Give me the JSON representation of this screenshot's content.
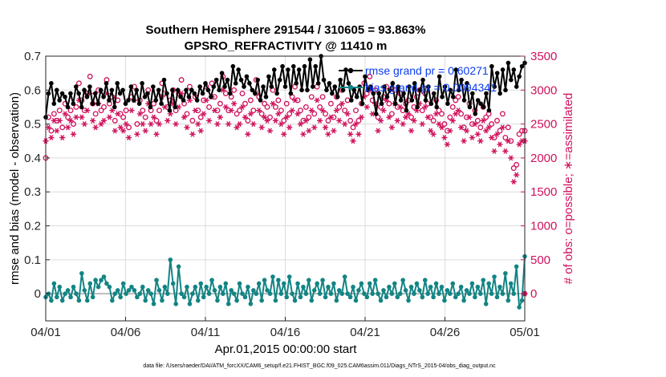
{
  "chart_data": {
    "type": "line",
    "title_line1": "Southern Hemisphere 291544 / 310605 = 93.863%",
    "title_line2": "GPSRO_REFRACTIVITY @ 11410 m",
    "xlabel": "Apr.01,2015 00:00:00 start",
    "ylabel_left": "rmse and bias (model - observation)",
    "ylabel_right": "# of obs: o=possible; ∗=assimilated",
    "footer": "data file: /Users/raeder/DAI/ATM_forcXX/CAM6_setup/f.e21.FHIST_BGC.f09_025.CAM6assim.011/Diags_NTrS_2015-04/obs_diag_output.nc",
    "x_ticks": [
      "04/01",
      "04/06",
      "04/11",
      "04/16",
      "04/21",
      "04/26",
      "05/01"
    ],
    "xlim": [
      0,
      30
    ],
    "ylim_left": [
      -0.08,
      0.7
    ],
    "yticks_left": [
      "0",
      "0.1",
      "0.2",
      "0.3",
      "0.4",
      "0.5",
      "0.6",
      "0.7"
    ],
    "ylim_right": [
      -400,
      3500
    ],
    "yticks_right": [
      "0",
      "500",
      "1000",
      "1500",
      "2000",
      "2500",
      "3000",
      "3500"
    ],
    "grid": true,
    "legend_position": "top-right",
    "colors": {
      "rmse": "#000000",
      "bias": "#138484",
      "obs": "#d0115c",
      "legend_text": "#0b3df0",
      "zero_line": "#bbbbbb"
    },
    "series": [
      {
        "name": "rmse grand pr = 0.60271",
        "axis": "left",
        "values": [
          0.52,
          0.59,
          0.62,
          0.56,
          0.6,
          0.57,
          0.59,
          0.58,
          0.55,
          0.59,
          0.56,
          0.61,
          0.59,
          0.55,
          0.6,
          0.58,
          0.61,
          0.56,
          0.59,
          0.56,
          0.6,
          0.58,
          0.62,
          0.57,
          0.6,
          0.55,
          0.62,
          0.59,
          0.6,
          0.56,
          0.57,
          0.61,
          0.57,
          0.6,
          0.56,
          0.62,
          0.58,
          0.59,
          0.55,
          0.61,
          0.57,
          0.6,
          0.56,
          0.63,
          0.59,
          0.54,
          0.6,
          0.55,
          0.6,
          0.58,
          0.57,
          0.6,
          0.58,
          0.6,
          0.59,
          0.57,
          0.61,
          0.59,
          0.62,
          0.6,
          0.58,
          0.61,
          0.63,
          0.6,
          0.65,
          0.61,
          0.63,
          0.59,
          0.67,
          0.62,
          0.66,
          0.63,
          0.61,
          0.64,
          0.62,
          0.6,
          0.59,
          0.63,
          0.57,
          0.61,
          0.58,
          0.64,
          0.61,
          0.66,
          0.59,
          0.63,
          0.67,
          0.61,
          0.66,
          0.59,
          0.67,
          0.62,
          0.66,
          0.6,
          0.67,
          0.6,
          0.69,
          0.61,
          0.67,
          0.62,
          0.7,
          0.63,
          0.6,
          0.62,
          0.59,
          0.61,
          0.58,
          0.63,
          0.6,
          0.66,
          0.62,
          0.57,
          0.6,
          0.58,
          0.61,
          0.56,
          0.64,
          0.6,
          0.61,
          0.59,
          0.53,
          0.59,
          0.56,
          0.61,
          0.58,
          0.6,
          0.62,
          0.56,
          0.61,
          0.57,
          0.59,
          0.54,
          0.61,
          0.57,
          0.62,
          0.55,
          0.6,
          0.63,
          0.57,
          0.61,
          0.56,
          0.59,
          0.55,
          0.64,
          0.58,
          0.61,
          0.56,
          0.6,
          0.58,
          0.66,
          0.6,
          0.63,
          0.57,
          0.62,
          0.55,
          0.59,
          0.53,
          0.57,
          0.56,
          0.55,
          0.59,
          0.54,
          0.67,
          0.61,
          0.65,
          0.59,
          0.66,
          0.6,
          0.68,
          0.63,
          0.66,
          0.61,
          0.64,
          0.67,
          0.68
        ]
      },
      {
        "name": "bias grand pr = 0.0094341",
        "axis": "left",
        "values": [
          -0.01,
          0.0,
          -0.02,
          0.03,
          -0.01,
          0.02,
          -0.02,
          0.0,
          0.01,
          -0.01,
          0.02,
          0.0,
          -0.02,
          0.06,
          0.01,
          -0.02,
          0.03,
          -0.01,
          0.04,
          0.02,
          0.04,
          0.05,
          0.03,
          0.02,
          -0.02,
          0.0,
          0.01,
          -0.01,
          0.03,
          0.0,
          0.01,
          0.02,
          0.01,
          -0.01,
          0.0,
          0.02,
          -0.02,
          0.01,
          0.0,
          -0.03,
          0.04,
          0.01,
          -0.02,
          0.02,
          0.0,
          0.1,
          0.03,
          -0.03,
          0.08,
          0.0,
          -0.01,
          0.02,
          -0.03,
          0.0,
          0.02,
          -0.02,
          0.03,
          -0.01,
          0.02,
          0.0,
          0.04,
          0.01,
          -0.02,
          0.02,
          0.0,
          0.03,
          -0.03,
          0.01,
          0.0,
          -0.02,
          0.03,
          0.0,
          -0.01,
          0.02,
          -0.03,
          0.01,
          0.0,
          0.03,
          -0.02,
          0.04,
          0.01,
          0.0,
          0.05,
          -0.02,
          0.04,
          0.0,
          0.03,
          -0.01,
          0.05,
          0.0,
          -0.02,
          0.03,
          -0.01,
          0.02,
          0.0,
          0.04,
          -0.02,
          0.01,
          0.03,
          0.0,
          0.04,
          -0.01,
          0.02,
          0.0,
          0.03,
          -0.02,
          0.01,
          0.0,
          0.05,
          0.0,
          -0.01,
          0.02,
          -0.02,
          0.01,
          0.03,
          0.0,
          -0.01,
          0.03,
          0.0,
          0.04,
          0.0,
          -0.02,
          0.01,
          -0.01,
          0.02,
          0.0,
          0.03,
          -0.01,
          0.0,
          0.04,
          0.01,
          -0.02,
          0.02,
          0.0,
          0.03,
          0.01,
          -0.01,
          0.04,
          0.0,
          0.02,
          -0.01,
          0.03,
          0.0,
          0.02,
          -0.02,
          0.01,
          0.0,
          0.03,
          -0.01,
          0.0,
          0.02,
          -0.02,
          0.01,
          0.0,
          0.03,
          -0.01,
          0.02,
          0.0,
          0.04,
          -0.03,
          0.03,
          0.0,
          0.05,
          -0.01,
          0.02,
          0.0,
          0.06,
          -0.02,
          0.03,
          0.0,
          0.08,
          -0.04,
          -0.02,
          0.11
        ]
      },
      {
        "name": "possible",
        "axis": "right",
        "marker": "o",
        "values": [
          2000,
          2600,
          2400,
          2650,
          2550,
          2700,
          2450,
          2800,
          2600,
          2700,
          2500,
          2750,
          3100,
          2850,
          2700,
          2950,
          3200,
          2800,
          2650,
          3000,
          2700,
          2750,
          3150,
          2800,
          2900,
          2550,
          2850,
          2650,
          2600,
          2700,
          2450,
          2900,
          3050,
          2500,
          2850,
          2700,
          2600,
          3000,
          2700,
          2800,
          2550,
          2700,
          3100,
          2950,
          2750,
          2850,
          3000,
          2700,
          2950,
          3150,
          2800,
          2650,
          3050,
          2550,
          2900,
          2700,
          2600,
          2850,
          3050,
          2750,
          3100,
          2900,
          2700,
          2800,
          3200,
          2950,
          2700,
          2900,
          3000,
          2650,
          2700,
          2950,
          2800,
          2550,
          2850,
          2700,
          3150,
          2900,
          2650,
          2800,
          2750,
          2600,
          3000,
          2750,
          2850,
          2700,
          2550,
          2800,
          2650,
          2900,
          3050,
          2850,
          2700,
          2550,
          2750,
          2600,
          2900,
          2650,
          3050,
          2750,
          2900,
          2650,
          2550,
          2800,
          2600,
          2900,
          2750,
          3000,
          2700,
          2850,
          2550,
          2450,
          2700,
          2550,
          2800,
          3100,
          2950,
          3200,
          2850,
          3000,
          2600,
          2750,
          2900,
          3050,
          2800,
          2650,
          3000,
          2750,
          2950,
          2700,
          2800,
          2850,
          2600,
          2750,
          2900,
          3000,
          2700,
          2950,
          2800,
          2600,
          2550,
          2850,
          2700,
          2650,
          2500,
          2400,
          2600,
          2750,
          2850,
          2900,
          2650,
          2450,
          2600,
          2800,
          2500,
          2700,
          2550,
          2450,
          2750,
          2600,
          2650,
          2500,
          2300,
          2550,
          2400,
          2650,
          2300,
          2450,
          2250,
          1850,
          1900,
          2350,
          2400,
          2400
        ]
      },
      {
        "name": "assimilated",
        "axis": "right",
        "marker": "*",
        "values": [
          2250,
          2450,
          2300,
          2550,
          2400,
          2550,
          2300,
          2650,
          2450,
          2550,
          2350,
          2600,
          2850,
          2600,
          2500,
          2700,
          2950,
          2550,
          2450,
          2800,
          2500,
          2550,
          2950,
          2600,
          2700,
          2400,
          2650,
          2450,
          2400,
          2500,
          2300,
          2700,
          2850,
          2350,
          2650,
          2500,
          2400,
          2800,
          2500,
          2600,
          2350,
          2500,
          2900,
          2750,
          2550,
          2650,
          2800,
          2500,
          2750,
          2950,
          2600,
          2450,
          2850,
          2350,
          2700,
          2500,
          2400,
          2650,
          2850,
          2550,
          2900,
          2700,
          2500,
          2600,
          3000,
          2750,
          2500,
          2700,
          2800,
          2450,
          2500,
          2750,
          2600,
          2350,
          2650,
          2500,
          2950,
          2700,
          2450,
          2600,
          2550,
          2400,
          2800,
          2550,
          2650,
          2500,
          2350,
          2600,
          2450,
          2700,
          2850,
          2650,
          2500,
          2350,
          2550,
          2400,
          2700,
          2450,
          2850,
          2550,
          2700,
          2450,
          2350,
          2600,
          2400,
          2700,
          2550,
          2800,
          2500,
          2650,
          2350,
          2250,
          2500,
          2350,
          2600,
          2900,
          2750,
          3000,
          2650,
          2800,
          2400,
          2550,
          2700,
          2850,
          2600,
          2450,
          2800,
          2550,
          2750,
          2500,
          2600,
          2650,
          2400,
          2550,
          2700,
          2800,
          2500,
          2750,
          2600,
          2400,
          2350,
          2650,
          2500,
          2450,
          2300,
          2200,
          2400,
          2550,
          2650,
          2700,
          2450,
          2250,
          2400,
          2600,
          2300,
          2500,
          2350,
          2250,
          2550,
          2400,
          2450,
          2300,
          2100,
          2350,
          2200,
          2450,
          2100,
          2250,
          2000,
          1650,
          1750,
          2200,
          2250,
          2250
        ]
      }
    ]
  }
}
